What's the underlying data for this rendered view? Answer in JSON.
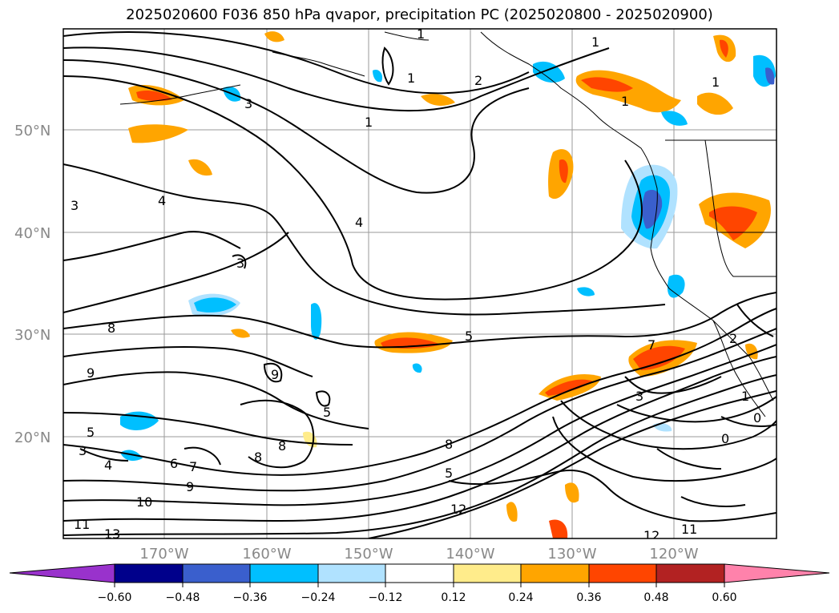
{
  "title": "2025020600 F036 850 hPa qvapor, precipitation PC (2025020800 - 2025020900)",
  "map": {
    "lat_labels": [
      "50°N",
      "40°N",
      "30°N",
      "20°N"
    ],
    "lon_labels": [
      "170°W",
      "160°W",
      "150°W",
      "140°W",
      "130°W",
      "120°W"
    ],
    "contour_labels": [
      "1",
      "1",
      "1",
      "1",
      "1",
      "1",
      "2",
      "3",
      "3",
      "3",
      "3",
      "3",
      "4",
      "4",
      "4",
      "5",
      "5",
      "5",
      "5",
      "6",
      "7",
      "7",
      "8",
      "8",
      "8",
      "8",
      "9",
      "9",
      "9",
      "10",
      "11",
      "11",
      "12",
      "12",
      "13",
      "2",
      "0",
      "0",
      "1"
    ]
  },
  "colorbar": {
    "tick_labels": [
      "−0.60",
      "−0.48",
      "−0.36",
      "−0.24",
      "−0.12",
      "0.12",
      "0.24",
      "0.36",
      "0.48",
      "0.60"
    ],
    "colors": [
      "#9932CC",
      "#00008B",
      "#3A5FCD",
      "#00BFFF",
      "#B0E2FF",
      "#FFFFFF",
      "#FFEC8B",
      "#FFA500",
      "#FF4500",
      "#B22222",
      "#FF82AB"
    ]
  }
}
